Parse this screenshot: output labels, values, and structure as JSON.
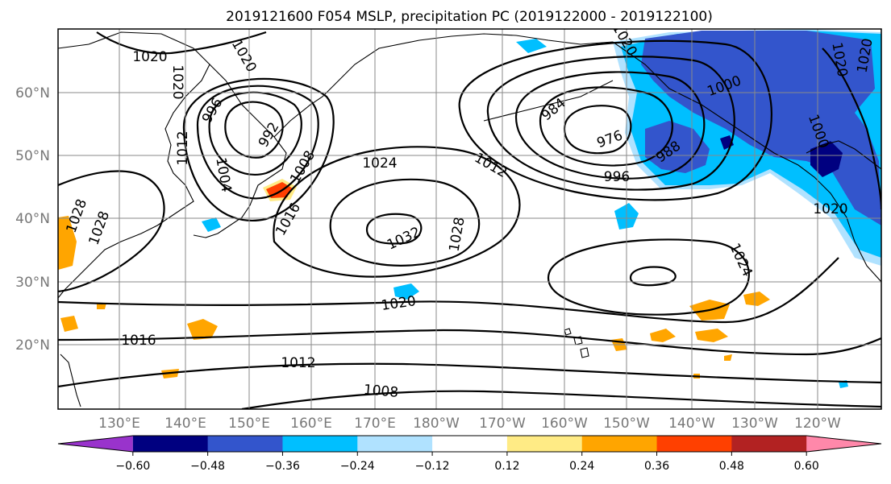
{
  "title": "2019121600 F054 MSLP, precipitation PC (2019122000 - 2019122100)",
  "latitude_labels": [
    "60°N",
    "50°N",
    "40°N",
    "30°N",
    "20°N"
  ],
  "longitude_labels": [
    "130°E",
    "140°E",
    "150°E",
    "160°E",
    "170°E",
    "180°W",
    "170°W",
    "160°W",
    "150°W",
    "140°W",
    "130°W",
    "120°W"
  ],
  "colorbar": {
    "colors": [
      "#9933cc",
      "#000080",
      "#3355cc",
      "#00bfff",
      "#b0e2ff",
      "#ffffff",
      "#ffeb85",
      "#ffa500",
      "#ff4000",
      "#b22222",
      "#ff88aa"
    ],
    "tick_labels": [
      "-0.60",
      "-0.48",
      "-0.36",
      "-0.24",
      "-0.12",
      "0.12",
      "0.24",
      "0.36",
      "0.48",
      "0.60"
    ]
  },
  "isobar_labels": [
    "1020",
    "1020",
    "1020",
    "1012",
    "1004",
    "996",
    "992",
    "1008",
    "1016",
    "1024",
    "1032",
    "1028",
    "1012",
    "984",
    "976",
    "988",
    "996",
    "1000",
    "1000",
    "1024",
    "1020",
    "1016",
    "1012",
    "1008",
    "1028",
    "1028",
    "1020",
    "1020",
    "1020",
    "1020"
  ]
}
